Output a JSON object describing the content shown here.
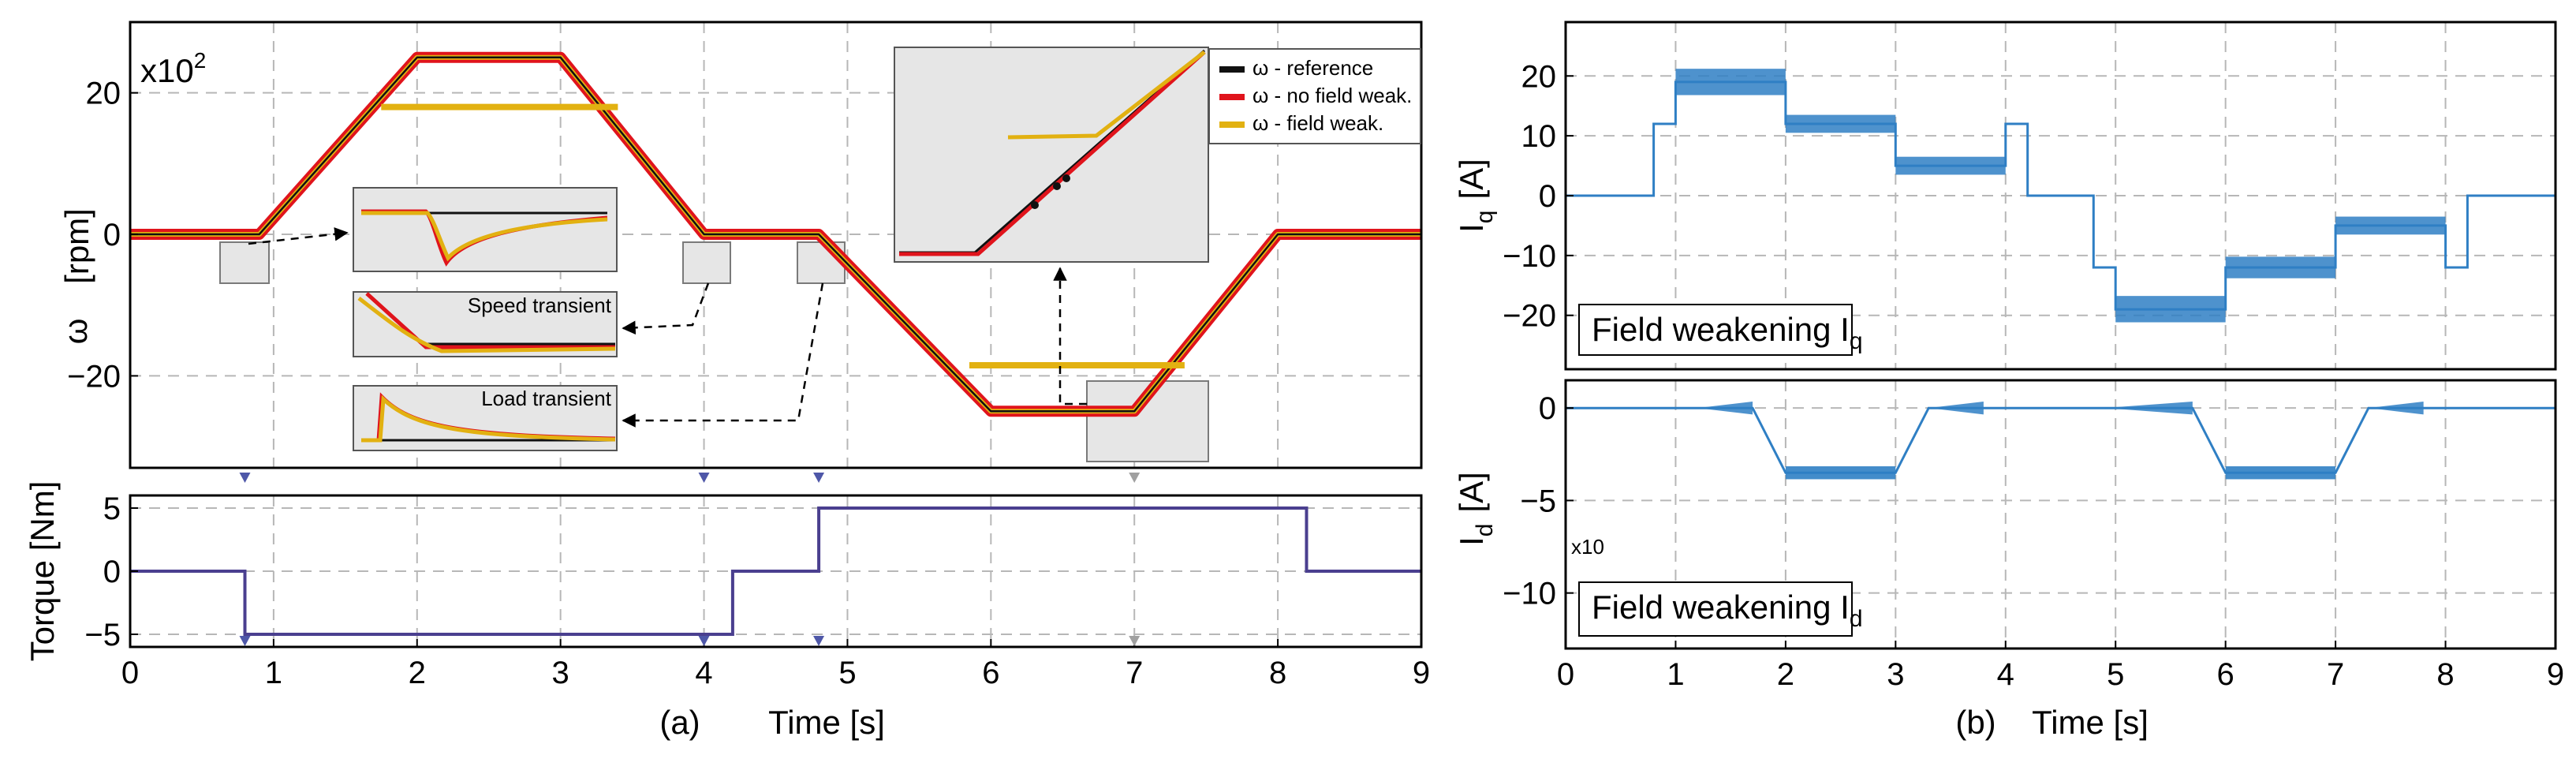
{
  "colors": {
    "reference": "#111111",
    "no_field_weak": "#e0141c",
    "field_weak": "#e2b111",
    "torque": "#4a3f8f",
    "current": "#2f7fc4",
    "marker": "#4e57a8",
    "marker_gray": "#a0a0a0"
  },
  "chart_data": [
    {
      "type": "line",
      "panel": "(a) top",
      "ylabel_symbol": "ω",
      "ylabel_unit": "[rpm]",
      "scale_label_base": "x10",
      "scale_label_exp": "2",
      "xlim": [
        0,
        9
      ],
      "ylim": [
        -33,
        30
      ],
      "yticks": [
        20,
        0,
        -20
      ],
      "ytick_labels": [
        "20",
        "0",
        "−20"
      ],
      "legend": [
        "ω - reference",
        "ω - no field weak.",
        "ω - field weak."
      ],
      "series": [
        {
          "name": "ω - reference",
          "x": [
            0,
            0.9,
            2,
            3,
            4,
            4.8,
            6,
            7,
            8,
            9
          ],
          "y": [
            0,
            0,
            25,
            25,
            0,
            0,
            -25,
            -25,
            0,
            0
          ]
        },
        {
          "name": "ω - no field weak.",
          "x": [
            0,
            0.9,
            2,
            3,
            4,
            4.8,
            6,
            7,
            8,
            9
          ],
          "y": [
            0,
            0,
            25,
            25,
            0,
            0,
            -25,
            -25,
            0,
            0
          ]
        },
        {
          "name": "ω - field weak.",
          "x": [
            1.75,
            3.4
          ],
          "y": [
            18,
            18
          ]
        },
        {
          "name": "ω - field weak. (negative)",
          "x": [
            5.85,
            7.35
          ],
          "y": [
            -18.5,
            -18.5
          ]
        }
      ],
      "annotations": [
        "Speed transient",
        "Load transient"
      ]
    },
    {
      "type": "line",
      "panel": "(a) bottom",
      "ylabel": "Torque [Nm]",
      "xlim": [
        0,
        9
      ],
      "ylim": [
        -6,
        6
      ],
      "yticks": [
        5,
        0,
        -5
      ],
      "ytick_labels": [
        "5",
        "0",
        "−5"
      ],
      "series": [
        {
          "name": "Torque",
          "x": [
            0,
            0.8,
            0.8,
            4.2,
            4.2,
            4.8,
            4.8,
            8.2,
            8.2,
            9
          ],
          "y": [
            0,
            0,
            -5,
            -5,
            0,
            0,
            5,
            5,
            0,
            0
          ]
        }
      ],
      "event_markers_x": [
        0.8,
        4,
        4.8,
        7
      ]
    },
    {
      "type": "line",
      "panel": "(b) top",
      "ylabel_main": "I",
      "ylabel_sub": "q",
      "ylabel_unit": "[A]",
      "xlim": [
        0,
        9
      ],
      "ylim": [
        -29,
        29
      ],
      "yticks": [
        20,
        10,
        0,
        -10,
        -20
      ],
      "ytick_labels": [
        "20",
        "10",
        "0",
        "−10",
        "−20"
      ],
      "legend_main": "Field weakening I",
      "legend_sub": "q",
      "series": [
        {
          "name": "Iq",
          "x": [
            0,
            0.8,
            0.8,
            1,
            1,
            2,
            2,
            3,
            3,
            4,
            4,
            4.2,
            4.2,
            4.8,
            4.8,
            5,
            5,
            6,
            6,
            7,
            7,
            8,
            8,
            8.2,
            8.2,
            9
          ],
          "y": [
            0,
            0,
            12,
            12,
            19,
            19,
            12,
            12,
            5,
            5,
            12,
            12,
            0,
            0,
            -12,
            -12,
            -19,
            -19,
            -12,
            -12,
            -5,
            -5,
            -12,
            -12,
            0,
            0
          ]
        }
      ]
    },
    {
      "type": "line",
      "panel": "(b) bottom",
      "ylabel_main": "I",
      "ylabel_sub": "d",
      "ylabel_unit": "[A]",
      "scale_label": "x10",
      "xlim": [
        0,
        9
      ],
      "ylim": [
        -13,
        1.5
      ],
      "yticks": [
        0,
        -5,
        -10
      ],
      "ytick_labels": [
        "0",
        "−5",
        "−10"
      ],
      "legend_main": "Field weakening I",
      "legend_sub": "d",
      "series": [
        {
          "name": "Id",
          "x": [
            0,
            1.7,
            2,
            3,
            3.3,
            5.7,
            6,
            7,
            7.3,
            9
          ],
          "y": [
            0,
            0,
            -3.5,
            -3.5,
            0,
            0,
            -3.5,
            -3.5,
            0,
            0
          ]
        }
      ]
    }
  ],
  "x_axis": {
    "ticks": [
      0,
      1,
      2,
      3,
      4,
      5,
      6,
      7,
      8,
      9
    ],
    "tick_labels": [
      "0",
      "1",
      "2",
      "3",
      "4",
      "5",
      "6",
      "7",
      "8",
      "9"
    ],
    "label": "Time [s]"
  },
  "captions": {
    "a": "(a)",
    "b": "(b)"
  }
}
